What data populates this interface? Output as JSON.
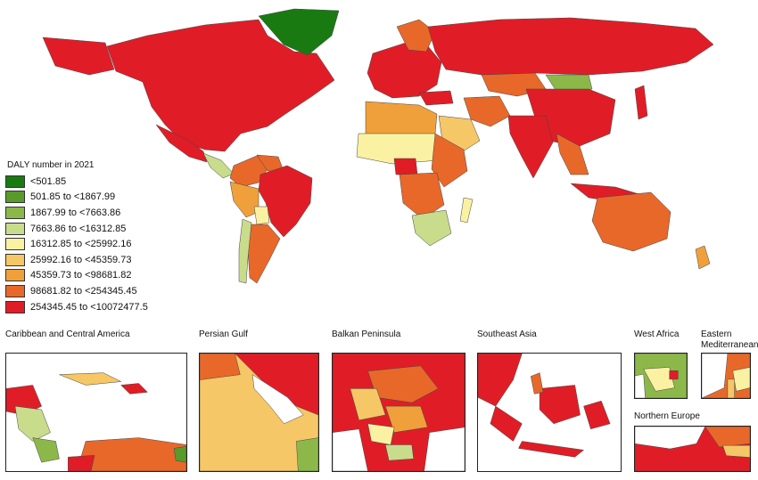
{
  "legend": {
    "title": "DALY number in 2021",
    "classes": [
      {
        "label": "<501.85",
        "color": "#1a7a12"
      },
      {
        "label": "501.85 to <1867.99",
        "color": "#5a9a2a"
      },
      {
        "label": "1867.99 to <7663.86",
        "color": "#8cb84a"
      },
      {
        "label": "7663.86 to <16312.85",
        "color": "#c8dc8c"
      },
      {
        "label": "16312.85 to <25992.16",
        "color": "#fbf1a2"
      },
      {
        "label": "25992.16 to <45359.73",
        "color": "#f6c766"
      },
      {
        "label": "45359.73 to <98681.82",
        "color": "#f0a03a"
      },
      {
        "label": "98681.82 to <254345.45",
        "color": "#e8682a"
      },
      {
        "label": "254345.45 to <10072477.5",
        "color": "#e01d26"
      }
    ]
  },
  "insets": [
    {
      "title": "Caribbean and Central America"
    },
    {
      "title": "Persian Gulf"
    },
    {
      "title": "Balkan Peninsula"
    },
    {
      "title": "Southeast Asia"
    },
    {
      "title": "West Africa"
    },
    {
      "title": "Eastern Mediterranean"
    },
    {
      "title": "Northern Europe"
    }
  ]
}
